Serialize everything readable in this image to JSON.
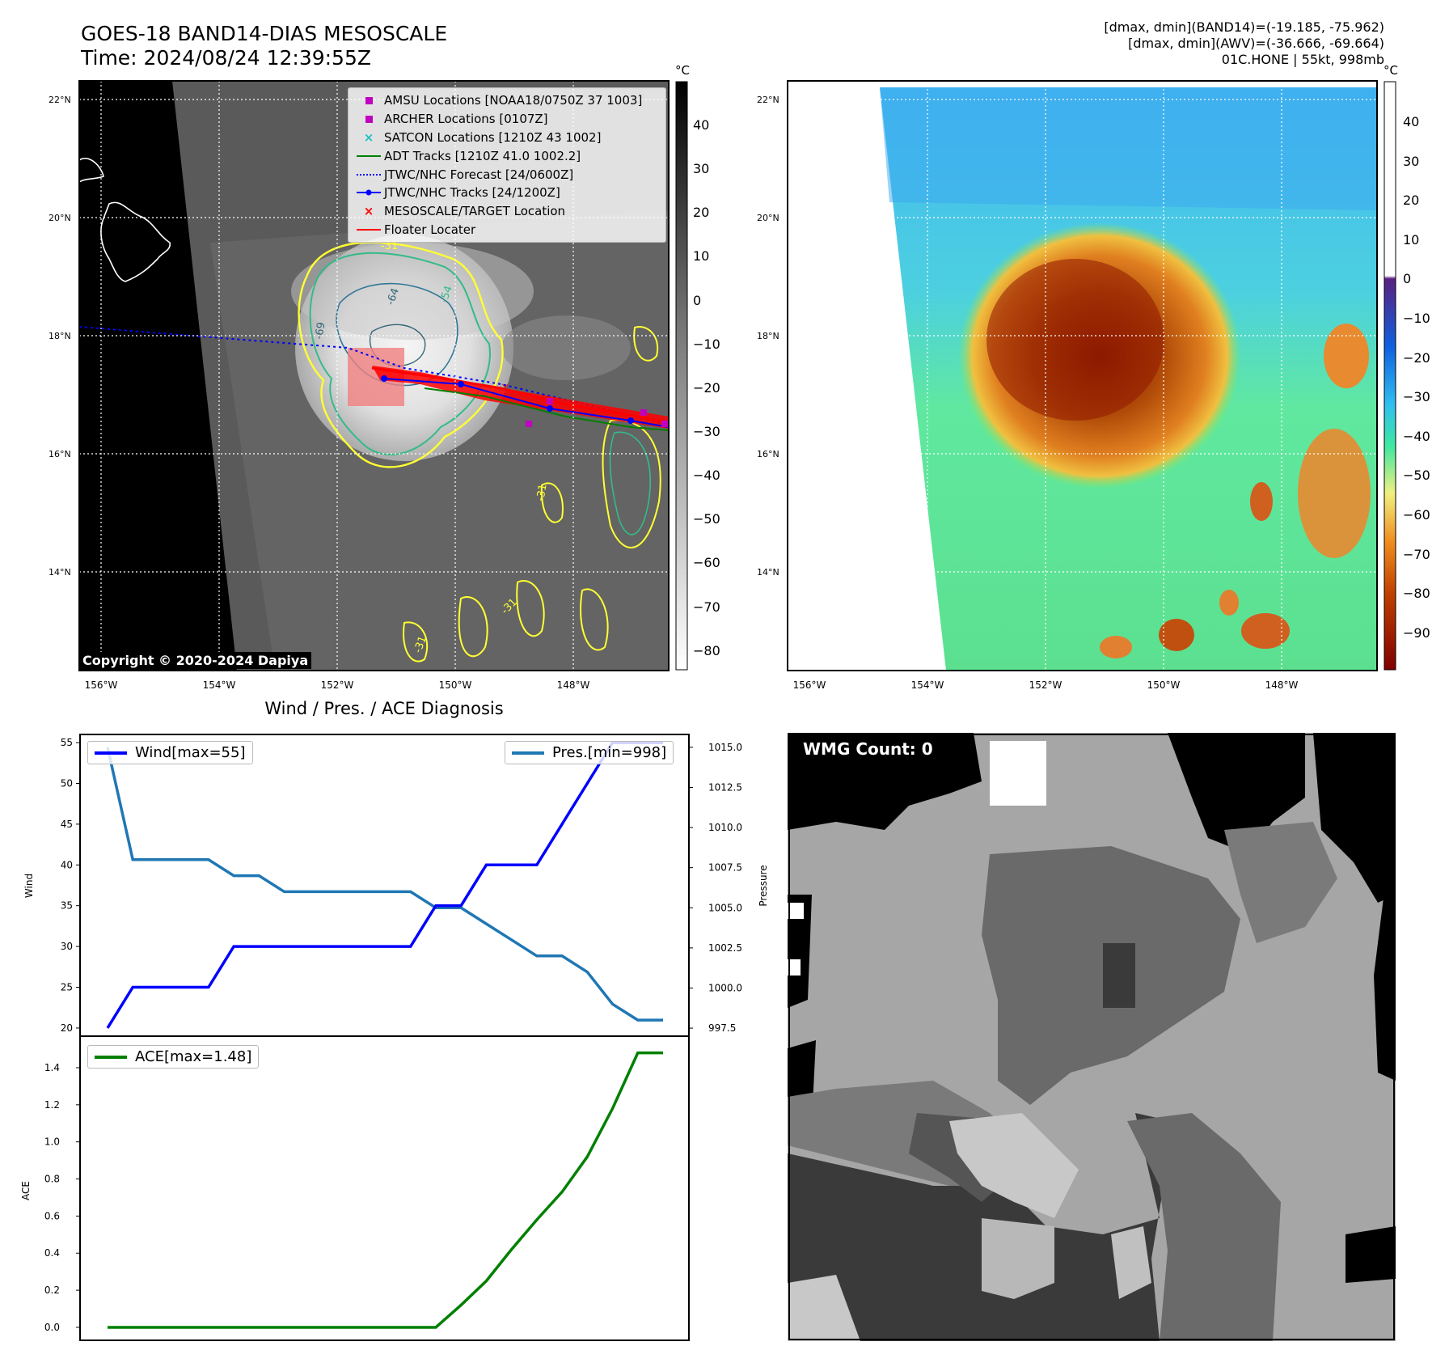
{
  "header": {
    "title_line1": "GOES-18 BAND14-DIAS MESOSCALE",
    "title_line2": "Time: 2024/08/24 12:39:55Z",
    "right_line1": "[dmax, dmin](BAND14)=(-19.185, -75.962)",
    "right_line2": "[dmax, dmin](AWV)=(-36.666, -69.664)",
    "right_line3": "01C.HONE | 55kt, 998mb"
  },
  "map_axes": {
    "lat_ticks": [
      "22°N",
      "20°N",
      "18°N",
      "16°N",
      "14°N"
    ],
    "lon_ticks": [
      "156°W",
      "154°W",
      "152°W",
      "150°W",
      "148°W"
    ]
  },
  "ir_map": {
    "copyright": "Copyright © 2020-2024 Dapiya",
    "contour_labels": [
      "-31",
      "-64",
      "-54",
      "-69",
      "-31",
      "-31",
      "-31"
    ],
    "legend": [
      {
        "label": "AMSU Locations [NOAA18/0750Z 37 1003]",
        "symbol": "square",
        "color": "#c000c0"
      },
      {
        "label": "ARCHER Locations [0107Z]",
        "symbol": "square",
        "color": "#c000c0"
      },
      {
        "label": "SATCON Locations [1210Z 43 1002]",
        "symbol": "x",
        "color": "#20c0c0"
      },
      {
        "label": "ADT Tracks [1210Z 41.0 1002.2]",
        "symbol": "line",
        "color": "#008000"
      },
      {
        "label": "JTWC/NHC Forecast [24/0600Z]",
        "symbol": "dotted",
        "color": "#0000ff"
      },
      {
        "label": "JTWC/NHC Tracks [24/1200Z]",
        "symbol": "line-dot",
        "color": "#0000ff"
      },
      {
        "label": "MESOSCALE/TARGET Location",
        "symbol": "x",
        "color": "#ff0000"
      },
      {
        "label": "Floater Locater",
        "symbol": "line",
        "color": "#ff0000"
      }
    ]
  },
  "ir_colorbar": {
    "unit": "°C",
    "ticks": [
      "40",
      "30",
      "20",
      "10",
      "0",
      "−10",
      "−20",
      "−30",
      "−40",
      "−50",
      "−60",
      "−70",
      "−80"
    ]
  },
  "wv_colorbar": {
    "unit": "°C",
    "ticks": [
      "40",
      "30",
      "20",
      "10",
      "0",
      "−10",
      "−20",
      "−30",
      "−40",
      "−50",
      "−60",
      "−70",
      "−80",
      "−90"
    ]
  },
  "diag": {
    "title": "Wind / Pres. / ACE Diagnosis",
    "wind_label": "Wind",
    "pressure_label": "Pressure",
    "ace_label": "ACE",
    "wind_legend": "Wind[max=55]",
    "pres_legend": "Pres.[min=998]",
    "ace_legend": "ACE[max=1.48]",
    "wind_ticks": [
      "55",
      "50",
      "45",
      "40",
      "35",
      "30",
      "25",
      "20"
    ],
    "pres_ticks": [
      "1015.0",
      "1012.5",
      "1010.0",
      "1007.5",
      "1005.0",
      "1002.5",
      "1000.0",
      "997.5"
    ],
    "ace_ticks": [
      "1.4",
      "1.2",
      "1.0",
      "0.8",
      "0.6",
      "0.4",
      "0.2",
      "0.0"
    ]
  },
  "wmg": {
    "label": "WMG Count: 0"
  },
  "colors": {
    "wind": "#0000ff",
    "pressure": "#1f77b4",
    "ace": "#008000",
    "contour_yellow": "#ffff33",
    "contour_green": "#33aa77"
  },
  "chart_data": [
    {
      "type": "line",
      "title": "Wind / Pres. / ACE Diagnosis",
      "x": [
        0,
        1,
        2,
        3,
        4,
        5,
        6,
        7,
        8,
        9,
        10,
        11,
        12,
        13,
        14,
        15,
        16,
        17,
        18,
        19,
        20,
        21,
        22
      ],
      "series": [
        {
          "name": "Wind[max=55]",
          "axis": "left",
          "ylabel": "Wind",
          "ylim": [
            19,
            56
          ],
          "values": [
            20,
            25,
            25,
            25,
            25,
            30,
            30,
            30,
            30,
            30,
            30,
            30,
            30,
            35,
            35,
            40,
            40,
            40,
            45,
            50,
            55,
            55,
            55
          ]
        },
        {
          "name": "Pres.[min=998]",
          "axis": "right",
          "ylabel": "Pressure",
          "ylim": [
            997,
            1015.8
          ],
          "values": [
            1015,
            1008,
            1008,
            1008,
            1008,
            1007,
            1007,
            1006,
            1006,
            1006,
            1006,
            1006,
            1006,
            1005,
            1005,
            1004,
            1003,
            1002,
            1002,
            1001,
            999,
            998,
            998
          ]
        }
      ]
    },
    {
      "type": "line",
      "x": [
        0,
        1,
        2,
        3,
        4,
        5,
        6,
        7,
        8,
        9,
        10,
        11,
        12,
        13,
        14,
        15,
        16,
        17,
        18,
        19,
        20,
        21,
        22
      ],
      "series": [
        {
          "name": "ACE[max=1.48]",
          "ylabel": "ACE",
          "ylim": [
            -0.07,
            1.57
          ],
          "values": [
            0,
            0,
            0,
            0,
            0,
            0,
            0,
            0,
            0,
            0,
            0,
            0,
            0,
            0,
            0.12,
            0.25,
            0.42,
            0.58,
            0.73,
            0.92,
            1.18,
            1.48,
            1.48
          ]
        }
      ]
    }
  ]
}
